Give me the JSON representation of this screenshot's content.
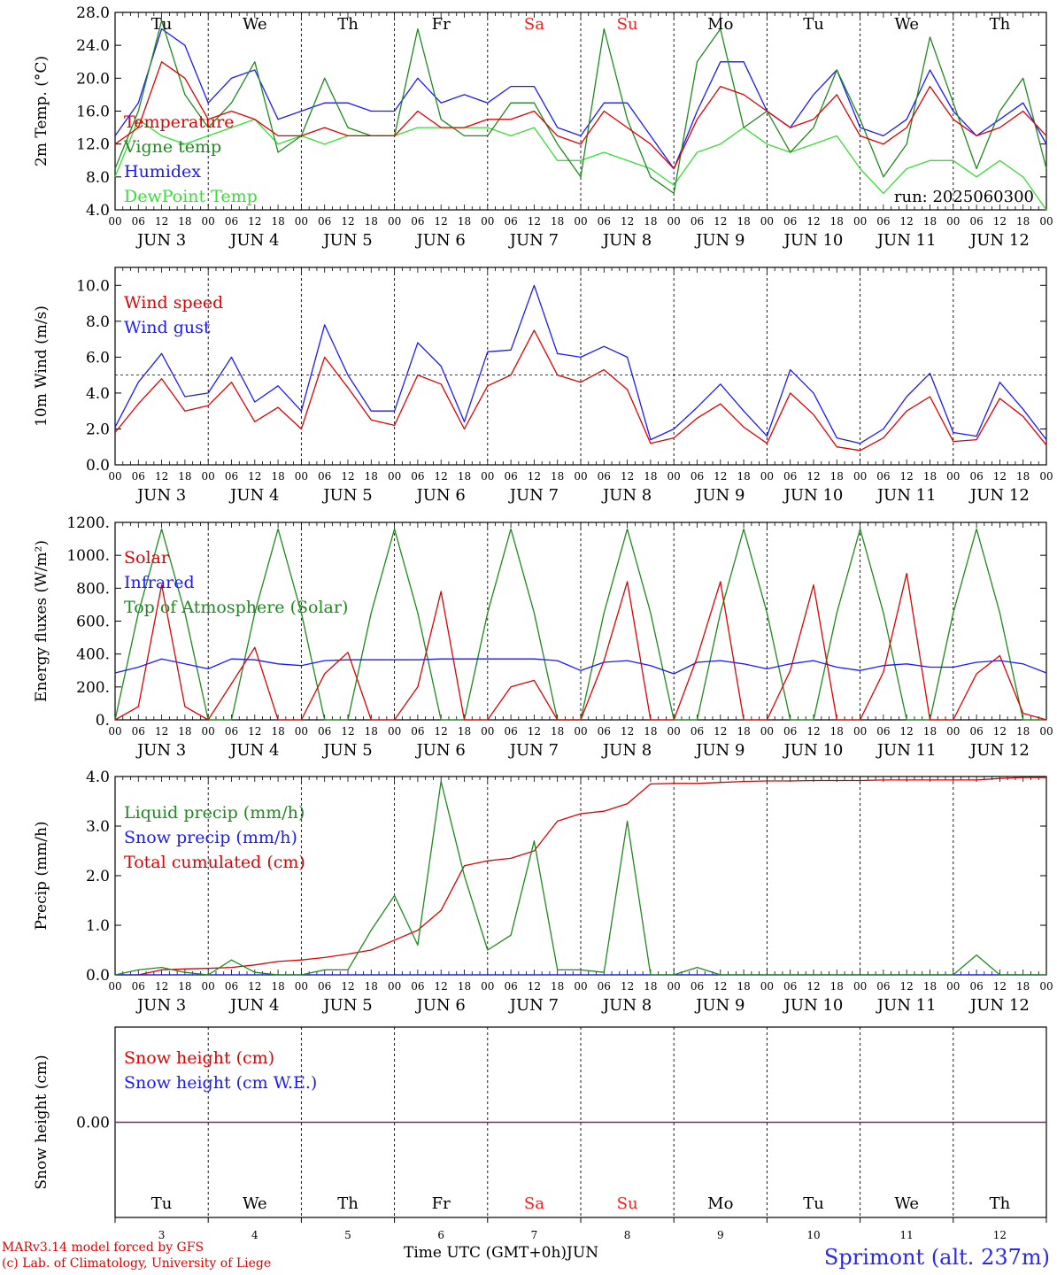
{
  "days": {
    "weekday": [
      "Tu",
      "We",
      "Th",
      "Fr",
      "Sa",
      "Su",
      "Mo",
      "Tu",
      "We",
      "Th"
    ],
    "weekend": [
      false,
      false,
      false,
      false,
      true,
      true,
      false,
      false,
      false,
      false
    ],
    "date_labels": [
      "JUN  3",
      "JUN  4",
      "JUN  5",
      "JUN  6",
      "JUN  7",
      "JUN  8",
      "JUN  9",
      "JUN 10",
      "JUN 11",
      "JUN 12"
    ],
    "day_numbers": [
      "3",
      "4",
      "5",
      "6",
      "7",
      "8",
      "9",
      "10",
      "11",
      "12"
    ],
    "hour_ticks": [
      "00",
      "06",
      "12",
      "18"
    ],
    "end_tick": "00"
  },
  "colors": {
    "red": "#e00000",
    "green": "#1e8a1e",
    "blue": "#1a1aff",
    "light_green": "#33e033",
    "weekend": "#ff1a1a",
    "black": "#000000"
  },
  "run_label": "run: 2025060300",
  "credits": {
    "line1": "MARv3.14 model forced by GFS",
    "line2": "(c) Lab. of Climatology, University of Liege"
  },
  "x_title": "Time UTC (GMT+0h)",
  "x_month": "JUN",
  "station": "Sprimont (alt. 237m)",
  "chart_data": [
    {
      "type": "line",
      "ylabel": "2m Temp. (°C)",
      "ylim": [
        4,
        28
      ],
      "ytick_labels": [
        "4.0",
        "8.0",
        "12.0",
        "16.0",
        "20.0",
        "24.0",
        "28.0"
      ],
      "x_hours": [
        0,
        6,
        12,
        18,
        24,
        30,
        36,
        42,
        48,
        54,
        60,
        66,
        72,
        78,
        84,
        90,
        96,
        102,
        108,
        114,
        120,
        126,
        132,
        138,
        144,
        150,
        156,
        162,
        168,
        174,
        180,
        186,
        192,
        198,
        204,
        210,
        216,
        222,
        228,
        234,
        240
      ],
      "series": [
        {
          "name": "Temperature",
          "color": "red",
          "values": [
            12,
            14,
            22,
            20,
            15,
            16,
            15,
            13,
            13,
            14,
            13,
            13,
            13,
            16,
            14,
            14,
            15,
            15,
            16,
            13,
            12,
            16,
            14,
            12,
            9,
            15,
            19,
            18,
            16,
            14,
            15,
            18,
            13,
            12,
            14,
            19,
            15,
            13,
            14,
            16,
            13
          ]
        },
        {
          "name": "Vigne temp",
          "color": "green",
          "values": [
            9,
            16,
            27,
            18,
            14,
            17,
            22,
            11,
            13,
            20,
            14,
            13,
            13,
            26,
            15,
            13,
            13,
            17,
            17,
            12,
            8,
            26,
            15,
            8,
            6,
            22,
            26,
            14,
            16,
            11,
            14,
            21,
            15,
            8,
            12,
            25,
            17,
            9,
            16,
            20,
            9
          ]
        },
        {
          "name": "Humidex",
          "color": "blue",
          "values": [
            13,
            17,
            26,
            24,
            17,
            20,
            21,
            15,
            16,
            17,
            17,
            16,
            16,
            20,
            17,
            18,
            17,
            19,
            19,
            14,
            13,
            17,
            17,
            13,
            9,
            16,
            22,
            22,
            16,
            14,
            18,
            21,
            14,
            13,
            15,
            21,
            16,
            13,
            15,
            17,
            12
          ]
        },
        {
          "name": "DewPoint Temp",
          "color": "light_green",
          "values": [
            8,
            15,
            13,
            12,
            13,
            14,
            15,
            12,
            13,
            12,
            13,
            13,
            13,
            14,
            14,
            14,
            14,
            13,
            14,
            10,
            10,
            11,
            10,
            9,
            7,
            11,
            12,
            14,
            12,
            11,
            12,
            13,
            9,
            6,
            9,
            10,
            10,
            8,
            10,
            8,
            4
          ]
        }
      ],
      "legend": "top-left"
    },
    {
      "type": "line",
      "ylabel": "10m Wind (m/s)",
      "ylim": [
        0,
        11
      ],
      "ytick_labels": [
        "0.0",
        "2.0",
        "4.0",
        "6.0",
        "8.0",
        "10.0"
      ],
      "reference_line": 5,
      "x_hours": [
        0,
        6,
        12,
        18,
        24,
        30,
        36,
        42,
        48,
        54,
        60,
        66,
        72,
        78,
        84,
        90,
        96,
        102,
        108,
        114,
        120,
        126,
        132,
        138,
        144,
        150,
        156,
        162,
        168,
        174,
        180,
        186,
        192,
        198,
        204,
        210,
        216,
        222,
        228,
        234,
        240
      ],
      "series": [
        {
          "name": "Wind speed",
          "color": "red",
          "values": [
            1.8,
            3.4,
            4.8,
            3.0,
            3.3,
            4.6,
            2.4,
            3.2,
            2.0,
            6.0,
            4.3,
            2.5,
            2.2,
            5.0,
            4.5,
            2.0,
            4.4,
            5.0,
            7.5,
            5.0,
            4.6,
            5.3,
            4.2,
            1.2,
            1.5,
            2.6,
            3.4,
            2.1,
            1.2,
            4.0,
            2.8,
            1.0,
            0.8,
            1.5,
            3.0,
            3.8,
            1.3,
            1.4,
            3.7,
            2.7,
            1.1
          ]
        },
        {
          "name": "Wind gust",
          "color": "blue",
          "values": [
            2.1,
            4.6,
            6.2,
            3.8,
            4.0,
            6.0,
            3.5,
            4.4,
            3.0,
            7.8,
            5.0,
            3.0,
            3.0,
            6.8,
            5.5,
            2.4,
            6.3,
            6.4,
            10.0,
            6.2,
            6.0,
            6.6,
            6.0,
            1.4,
            2.0,
            3.2,
            4.5,
            3.0,
            1.6,
            5.3,
            4.0,
            1.5,
            1.2,
            2.0,
            3.8,
            5.1,
            1.8,
            1.6,
            4.6,
            3.1,
            1.4
          ]
        }
      ],
      "legend": "top-left"
    },
    {
      "type": "line",
      "ylabel": "Energy fluxes (W/m²)",
      "ylim": [
        0,
        1200
      ],
      "ytick_labels": [
        "0.",
        "200.",
        "400.",
        "600.",
        "800.",
        "1000.",
        "1200."
      ],
      "x_hours": [
        0,
        6,
        12,
        18,
        24,
        30,
        36,
        42,
        48,
        54,
        60,
        66,
        72,
        78,
        84,
        90,
        96,
        102,
        108,
        114,
        120,
        126,
        132,
        138,
        144,
        150,
        156,
        162,
        168,
        174,
        180,
        186,
        192,
        198,
        204,
        210,
        216,
        222,
        228,
        234,
        240
      ],
      "series": [
        {
          "name": "Solar",
          "color": "red",
          "values": [
            0,
            80,
            820,
            80,
            0,
            220,
            440,
            0,
            0,
            280,
            410,
            0,
            0,
            200,
            780,
            0,
            0,
            200,
            240,
            0,
            0,
            360,
            840,
            0,
            0,
            380,
            840,
            0,
            0,
            300,
            820,
            0,
            0,
            290,
            890,
            0,
            0,
            280,
            390,
            40,
            0
          ]
        },
        {
          "name": "Infrared",
          "color": "blue",
          "values": [
            285,
            320,
            370,
            340,
            310,
            370,
            365,
            340,
            330,
            360,
            365,
            365,
            365,
            365,
            370,
            370,
            370,
            370,
            370,
            360,
            300,
            350,
            360,
            330,
            280,
            350,
            360,
            340,
            310,
            340,
            360,
            320,
            300,
            330,
            340,
            320,
            320,
            350,
            360,
            340,
            285
          ]
        },
        {
          "name": "Top of Atmosphere (Solar)",
          "color": "green",
          "values": [
            0,
            650,
            1160,
            650,
            0,
            0,
            650,
            1160,
            650,
            0,
            0,
            650,
            1160,
            650,
            0,
            0,
            650,
            1160,
            650,
            0,
            0,
            650,
            1160,
            650,
            0,
            0,
            650,
            1160,
            650,
            0,
            0,
            650,
            1160,
            650,
            0,
            0,
            650,
            1160,
            650,
            0,
            0
          ]
        }
      ],
      "legend": "top-left"
    },
    {
      "type": "line",
      "ylabel": "Precip (mm/h)",
      "ylim": [
        0,
        4
      ],
      "ytick_labels": [
        "0.0",
        "1.0",
        "2.0",
        "3.0",
        "4.0"
      ],
      "x_hours": [
        0,
        6,
        12,
        18,
        24,
        30,
        36,
        42,
        48,
        54,
        60,
        66,
        72,
        78,
        84,
        90,
        96,
        102,
        108,
        114,
        120,
        126,
        132,
        138,
        144,
        150,
        156,
        162,
        168,
        174,
        180,
        186,
        192,
        198,
        204,
        210,
        216,
        222,
        228,
        234,
        240
      ],
      "series": [
        {
          "name": "Liquid precip (mm/h)",
          "color": "green",
          "values": [
            0,
            0.1,
            0.15,
            0.05,
            0,
            0.3,
            0.05,
            0,
            0,
            0.1,
            0.1,
            0.9,
            1.6,
            0.6,
            3.9,
            2.0,
            0.5,
            0.8,
            2.7,
            0.1,
            0.1,
            0.05,
            3.1,
            0,
            0,
            0.15,
            0,
            0,
            0,
            0,
            0,
            0,
            0,
            0,
            0,
            0,
            0,
            0.4,
            0,
            0,
            0
          ]
        },
        {
          "name": "Snow precip (mm/h)",
          "color": "blue",
          "values": [
            0,
            0,
            0,
            0,
            0,
            0,
            0,
            0,
            0,
            0,
            0,
            0,
            0,
            0,
            0,
            0,
            0,
            0,
            0,
            0,
            0,
            0,
            0,
            0,
            0,
            0,
            0,
            0,
            0,
            0,
            0,
            0,
            0,
            0,
            0,
            0,
            0,
            0,
            0,
            0,
            0
          ]
        },
        {
          "name": "Total cumulated (cm)",
          "color": "red",
          "values": [
            0,
            0,
            0.1,
            0.12,
            0.13,
            0.15,
            0.2,
            0.27,
            0.3,
            0.35,
            0.42,
            0.5,
            0.7,
            0.9,
            1.3,
            2.2,
            2.3,
            2.35,
            2.5,
            3.1,
            3.25,
            3.3,
            3.45,
            3.85,
            3.86,
            3.86,
            3.88,
            3.9,
            3.91,
            3.91,
            3.92,
            3.92,
            3.92,
            3.93,
            3.93,
            3.93,
            3.93,
            3.93,
            3.96,
            3.98,
            3.98
          ]
        }
      ],
      "legend": "top-left"
    },
    {
      "type": "line",
      "ylabel": "Snow height (cm)",
      "ytick_labels": [
        "0.00"
      ],
      "x_hours": [
        0,
        240
      ],
      "series": [
        {
          "name": "Snow height (cm)",
          "color": "red",
          "values": [
            0,
            0
          ]
        },
        {
          "name": "Snow height (cm W.E.)",
          "color": "blue",
          "values": [
            0,
            0
          ]
        }
      ],
      "legend": "top-left"
    }
  ]
}
